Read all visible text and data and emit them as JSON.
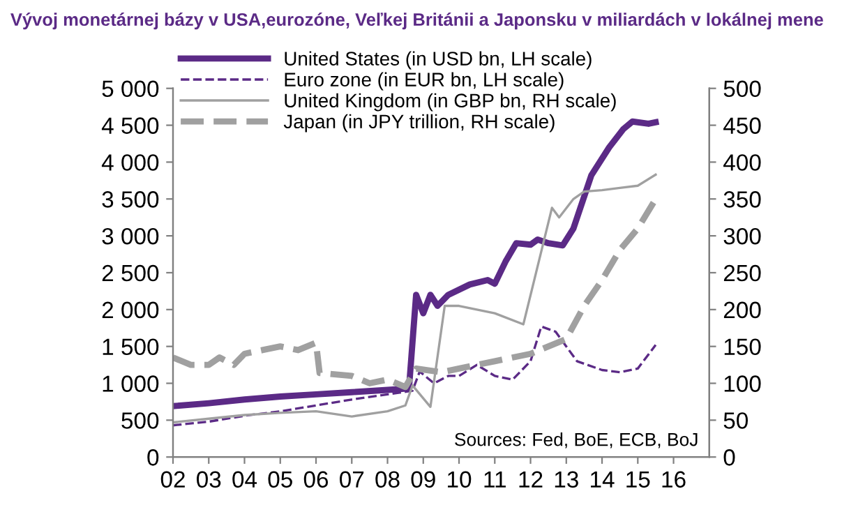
{
  "chart_data": {
    "type": "line",
    "title": "Vývoj monetárnej bázy v USA,eurozóne, Veľkej Británii a Japonsku v miliardách v lokálnej mene",
    "annotations": [
      "Sources: Fed, BoE, ECB, BoJ"
    ],
    "xlim": [
      2002,
      2017
    ],
    "xticks": [
      {
        "value": 2002,
        "label": "02"
      },
      {
        "value": 2003,
        "label": "03"
      },
      {
        "value": 2004,
        "label": "04"
      },
      {
        "value": 2005,
        "label": "05"
      },
      {
        "value": 2006,
        "label": "06"
      },
      {
        "value": 2007,
        "label": "07"
      },
      {
        "value": 2008,
        "label": "08"
      },
      {
        "value": 2009,
        "label": "09"
      },
      {
        "value": 2010,
        "label": "10"
      },
      {
        "value": 2011,
        "label": "11"
      },
      {
        "value": 2012,
        "label": "12"
      },
      {
        "value": 2013,
        "label": "13"
      },
      {
        "value": 2014,
        "label": "14"
      },
      {
        "value": 2015,
        "label": "15"
      },
      {
        "value": 2016,
        "label": "16"
      }
    ],
    "ylim": [
      0,
      5000
    ],
    "yticks": [
      0,
      500,
      {
        "value": 1000,
        "label": "1 000"
      },
      {
        "value": 1500,
        "label": "1 500"
      },
      {
        "value": 2000,
        "label": "2 000"
      },
      {
        "value": 2500,
        "label": "2 500"
      },
      {
        "value": 3000,
        "label": "3 000"
      },
      {
        "value": 3500,
        "label": "3 500"
      },
      {
        "value": 4000,
        "label": "4 000"
      },
      {
        "value": 4500,
        "label": "4 500"
      },
      {
        "value": 5000,
        "label": "5 000"
      }
    ],
    "y2lim": [
      0,
      500
    ],
    "y2ticks": [
      0,
      50,
      100,
      150,
      200,
      250,
      300,
      350,
      400,
      450,
      500
    ],
    "grid": false,
    "legend": "top left",
    "series": [
      {
        "name": "United States (in USD bn, LH scale)",
        "color": "#5b2a86",
        "line_style": "solid",
        "x": [
          2002,
          2003,
          2004,
          2005,
          2006,
          2007,
          2008,
          2008.6,
          2008.8,
          2009.0,
          2009.2,
          2009.4,
          2009.7,
          2010.3,
          2010.8,
          2011.0,
          2011.3,
          2011.6,
          2012.0,
          2012.2,
          2012.5,
          2012.9,
          2013.2,
          2013.7,
          2014.2,
          2014.6,
          2014.85,
          2015.3,
          2015.5
        ],
        "values": [
          690,
          730,
          780,
          820,
          850,
          880,
          910,
          930,
          2200,
          1950,
          2200,
          2050,
          2200,
          2340,
          2400,
          2350,
          2650,
          2900,
          2880,
          2950,
          2900,
          2870,
          3100,
          3820,
          4200,
          4450,
          4550,
          4520,
          4540
        ]
      },
      {
        "name": "Euro zone (in EUR bn, LH scale)",
        "color": "#5b2a86",
        "line_style": "dashed",
        "x": [
          2002,
          2003,
          2004,
          2005,
          2006,
          2007,
          2008,
          2008.7,
          2008.9,
          2009.3,
          2009.7,
          2010.0,
          2010.5,
          2011.0,
          2011.5,
          2012.0,
          2012.3,
          2012.7,
          2013.0,
          2013.3,
          2014.0,
          2014.5,
          2015.0,
          2015.5
        ],
        "values": [
          430,
          480,
          560,
          620,
          700,
          780,
          850,
          900,
          1160,
          1000,
          1100,
          1100,
          1250,
          1100,
          1050,
          1300,
          1770,
          1700,
          1500,
          1300,
          1180,
          1150,
          1200,
          1520
        ]
      },
      {
        "name": "United Kingdom (in GBP bn, RH scale)",
        "color": "#a0a0a0",
        "line_style": "solid",
        "axis": "y2",
        "x": [
          2002,
          2003,
          2004,
          2005,
          2006,
          2007,
          2008,
          2008.5,
          2008.7,
          2009.2,
          2009.6,
          2010.0,
          2011.0,
          2011.8,
          2012.6,
          2012.8,
          2013.2,
          2013.5,
          2014.0,
          2014.5,
          2015.0,
          2015.5
        ],
        "values": [
          47,
          52,
          57,
          60,
          62,
          55,
          62,
          70,
          97,
          68,
          205,
          205,
          195,
          180,
          338,
          325,
          350,
          360,
          362,
          365,
          368,
          383
        ]
      },
      {
        "name": "Japan (in JPY trillion, RH scale)",
        "color": "#a0a0a0",
        "line_style": "dashed",
        "axis": "y2",
        "x": [
          2002,
          2002.5,
          2003,
          2003.3,
          2003.7,
          2004,
          2004.5,
          2005,
          2005.5,
          2006,
          2006.1,
          2007,
          2007.5,
          2008,
          2008.5,
          2008.8,
          2009.5,
          2010,
          2010.5,
          2011,
          2011.5,
          2012,
          2012.5,
          2013,
          2013.5,
          2014,
          2014.5,
          2015,
          2015.5
        ],
        "values": [
          135,
          125,
          125,
          135,
          125,
          140,
          145,
          150,
          145,
          155,
          114,
          110,
          100,
          105,
          95,
          120,
          115,
          120,
          125,
          130,
          135,
          140,
          150,
          160,
          205,
          240,
          281,
          310,
          350
        ]
      }
    ]
  }
}
